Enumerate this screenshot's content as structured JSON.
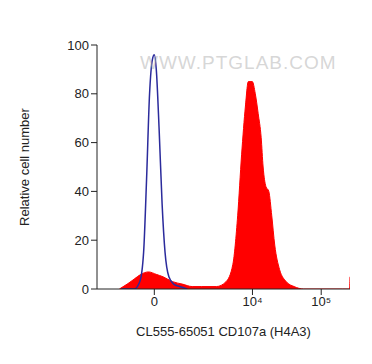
{
  "chart_data": {
    "type": "line",
    "watermark": "WWW.PTGLAB.COM",
    "x_label": "CL555-65051 CD107a (H4A3)",
    "y_label": "Relative cell number",
    "xlim": [
      -2500,
      262144
    ],
    "xticks": [
      0,
      {
        "value": 10000,
        "label": "10⁴"
      },
      {
        "value": 100000,
        "label": "10⁵"
      }
    ],
    "ylim": [
      0,
      100
    ],
    "yticks": [
      0,
      20,
      40,
      60,
      80,
      100
    ],
    "grid": false,
    "series": [
      {
        "type": "line",
        "color": "#2b2b9c",
        "x": [
          -1000,
          -550,
          -380,
          -275,
          -197,
          -120,
          -49,
          0,
          49,
          122,
          197,
          275,
          380,
          522,
          711,
          1010
        ],
        "values": [
          0,
          0,
          3,
          15,
          45,
          80,
          94,
          96,
          90,
          65,
          35,
          15,
          5,
          2,
          1,
          0
        ]
      },
      {
        "type": "area",
        "color": "#ff0000",
        "x": [
          -1090,
          -780,
          -550,
          -350,
          -147,
          49,
          222,
          490,
          815,
          1225,
          1755,
          2950,
          4100,
          5160,
          6080,
          6940,
          7900,
          8700,
          9950,
          11000,
          12100,
          13400,
          14300,
          15700,
          17300,
          19100,
          21100,
          24800,
          31100,
          40400,
          55600,
          204000,
          258000,
          262144
        ],
        "values": [
          0,
          2,
          4,
          6,
          7,
          6,
          5,
          3,
          2,
          1,
          1,
          1,
          3,
          10,
          30,
          55,
          75,
          85,
          85,
          80,
          72,
          62,
          50,
          42,
          40,
          30,
          18,
          8,
          3,
          1,
          0,
          0,
          0,
          5
        ]
      }
    ]
  }
}
